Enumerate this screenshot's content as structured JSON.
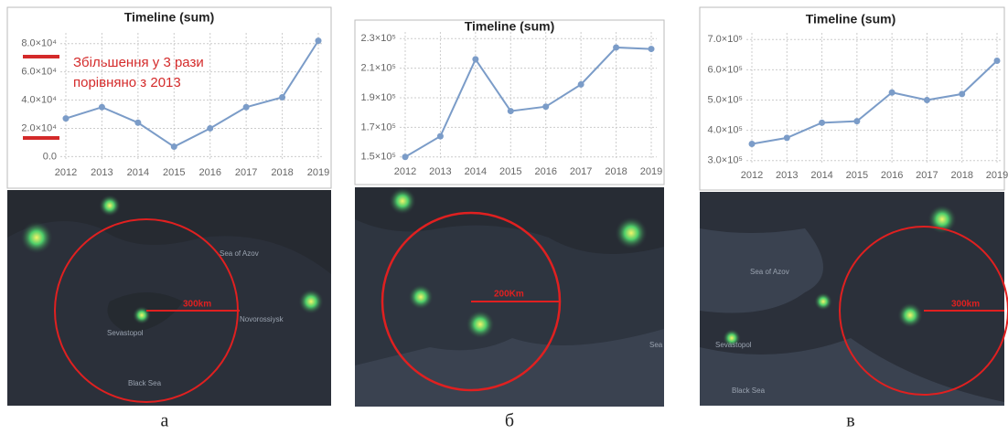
{
  "chart_data": [
    {
      "type": "line",
      "title": "Timeline (sum)",
      "annotation": "Збільшення у 3 рази порівняно з 2013",
      "categories": [
        "2012",
        "2013",
        "2014",
        "2015",
        "2016",
        "2017",
        "2018",
        "2019"
      ],
      "values": [
        27000,
        35000,
        24000,
        7000,
        20000,
        35000,
        42000,
        82000
      ],
      "color": "#7b9cc8",
      "ylim": [
        -3000,
        85000
      ],
      "yticks": [
        {
          "value": 0,
          "label": "0.0"
        },
        {
          "value": 20000,
          "label": "2.0×10⁴"
        },
        {
          "value": 40000,
          "label": "4.0×10⁴"
        },
        {
          "value": 60000,
          "label": "6.0×10⁴"
        },
        {
          "value": 80000,
          "label": "8.0×10⁴"
        }
      ],
      "grid": true
    },
    {
      "type": "line",
      "title": "Timeline (sum)",
      "categories": [
        "2012",
        "2013",
        "2014",
        "2015",
        "2016",
        "2017",
        "2018",
        "2019"
      ],
      "values": [
        150000,
        164000,
        216000,
        181000,
        184000,
        199000,
        224000,
        223000
      ],
      "color": "#7b9cc8",
      "ylim": [
        148000,
        232000
      ],
      "yticks": [
        {
          "value": 150000,
          "label": "1.5×10⁵"
        },
        {
          "value": 170000,
          "label": "1.7×10⁵"
        },
        {
          "value": 190000,
          "label": "1.9×10⁵"
        },
        {
          "value": 210000,
          "label": "2.1×10⁵"
        },
        {
          "value": 230000,
          "label": "2.3×10⁵"
        }
      ],
      "grid": true
    },
    {
      "type": "line",
      "title": "Timeline (sum)",
      "categories": [
        "2012",
        "2013",
        "2014",
        "2015",
        "2016",
        "2017",
        "2018",
        "2019"
      ],
      "values": [
        355000,
        375000,
        425000,
        430000,
        525000,
        500000,
        520000,
        630000
      ],
      "color": "#7b9cc8",
      "ylim": [
        290000,
        710000
      ],
      "yticks": [
        {
          "value": 300000,
          "label": "3.0×10⁵"
        },
        {
          "value": 400000,
          "label": "4.0×10⁵"
        },
        {
          "value": 500000,
          "label": "5.0×10⁵"
        },
        {
          "value": 600000,
          "label": "6.0×10⁵"
        },
        {
          "value": 700000,
          "label": "7.0×10⁵"
        }
      ],
      "grid": true
    }
  ],
  "maps": [
    {
      "labels": [
        "Sea of Azov",
        "Black Sea",
        "Sevastopol",
        "Novorossiysk"
      ],
      "scale": "300km"
    },
    {
      "labels": [
        "Sea"
      ],
      "scale": "200Km"
    },
    {
      "labels": [
        "Sea of Azov",
        "Black Sea",
        "Sevastopol"
      ],
      "scale": "300km"
    }
  ],
  "captions": [
    "а",
    "б",
    "в"
  ]
}
